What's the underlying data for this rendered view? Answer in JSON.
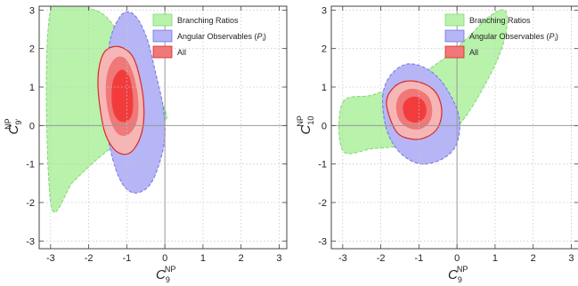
{
  "colors": {
    "branching": "#b9f2ab",
    "branching_edge": "#7fd872",
    "angular": "#b6b5f5",
    "angular_edge": "#7474e6",
    "all_outer": "#f7b6b6",
    "all_mid": "#f07878",
    "all_inner": "#f23c3c",
    "all_edge": "#d62a2a",
    "grid": "#c8c8c8",
    "axis_zero": "#999999"
  },
  "chart_data": [
    {
      "type": "contour",
      "xlabel_main": "C",
      "xlabel_sup": "NP",
      "xlabel_sub": "9",
      "ylabel_main": "C",
      "ylabel_sup": "NP",
      "ylabel_sub": "9'",
      "xlim": [
        -3.3,
        3.2
      ],
      "ylim": [
        -3.2,
        3.1
      ],
      "xticks": [
        -3,
        -2,
        -1,
        0,
        1,
        2,
        3
      ],
      "yticks": [
        -3,
        -2,
        -1,
        0,
        1,
        2,
        3
      ],
      "grid": true,
      "legend_position": "top-right",
      "legend": [
        {
          "label": "Branching Ratios",
          "color_key": "branching"
        },
        {
          "label": "Angular Observables (",
          "label_italic": "P",
          "label_sub": "i",
          "label_end": ")",
          "color_key": "angular"
        },
        {
          "label": "All",
          "color_key": "all_mid"
        }
      ],
      "regions": [
        {
          "name": "Branching Ratios",
          "color_key": "branching",
          "edge_key": "branching_edge",
          "dashed": true,
          "points": [
            [
              -3.0,
              3.0
            ],
            [
              -1.85,
              3.0
            ],
            [
              -1.3,
              2.55
            ],
            [
              -1.0,
              2.05
            ],
            [
              -0.55,
              1.45
            ],
            [
              -0.05,
              0.55
            ],
            [
              0.0,
              0.1
            ],
            [
              -0.6,
              -0.05
            ],
            [
              -1.15,
              -0.4
            ],
            [
              -1.75,
              -0.85
            ],
            [
              -2.4,
              -1.45
            ],
            [
              -3.0,
              -2.0
            ]
          ]
        },
        {
          "name": "Angular Observables",
          "color_key": "angular",
          "edge_key": "angular_edge",
          "dashed": true,
          "points": [
            [
              -1.5,
              1.0
            ],
            [
              -1.45,
              2.15
            ],
            [
              -1.2,
              2.8
            ],
            [
              -0.95,
              2.95
            ],
            [
              -0.7,
              2.75
            ],
            [
              -0.45,
              2.2
            ],
            [
              -0.25,
              1.4
            ],
            [
              -0.05,
              0.5
            ],
            [
              0.0,
              -0.3
            ],
            [
              -0.15,
              -1.0
            ],
            [
              -0.4,
              -1.55
            ],
            [
              -0.75,
              -1.75
            ],
            [
              -1.05,
              -1.6
            ],
            [
              -1.3,
              -1.1
            ],
            [
              -1.5,
              -0.2
            ]
          ]
        },
        {
          "name": "All 3 sigma",
          "color_key": "all_outer",
          "edge_key": "all_edge",
          "dashed": false,
          "points": [
            [
              -1.75,
              0.9
            ],
            [
              -1.72,
              1.55
            ],
            [
              -1.55,
              1.95
            ],
            [
              -1.2,
              2.05
            ],
            [
              -0.85,
              1.8
            ],
            [
              -0.65,
              1.2
            ],
            [
              -0.55,
              0.45
            ],
            [
              -0.6,
              -0.15
            ],
            [
              -0.8,
              -0.6
            ],
            [
              -1.05,
              -0.75
            ],
            [
              -1.35,
              -0.6
            ],
            [
              -1.6,
              -0.1
            ]
          ]
        },
        {
          "name": "All 2 sigma",
          "color_key": "all_mid",
          "edge_key": null,
          "dashed": false,
          "points": [
            [
              -1.55,
              0.85
            ],
            [
              -1.5,
              1.4
            ],
            [
              -1.3,
              1.75
            ],
            [
              -1.05,
              1.75
            ],
            [
              -0.85,
              1.4
            ],
            [
              -0.72,
              0.85
            ],
            [
              -0.7,
              0.3
            ],
            [
              -0.8,
              -0.05
            ],
            [
              -1.0,
              -0.25
            ],
            [
              -1.25,
              -0.2
            ],
            [
              -1.45,
              0.2
            ]
          ]
        },
        {
          "name": "All 1 sigma",
          "color_key": "all_inner",
          "edge_key": null,
          "dashed": false,
          "points": [
            [
              -1.4,
              0.75
            ],
            [
              -1.35,
              1.2
            ],
            [
              -1.15,
              1.45
            ],
            [
              -0.95,
              1.3
            ],
            [
              -0.85,
              0.85
            ],
            [
              -0.85,
              0.35
            ],
            [
              -0.98,
              0.12
            ],
            [
              -1.2,
              0.12
            ],
            [
              -1.35,
              0.35
            ]
          ]
        }
      ]
    },
    {
      "type": "contour",
      "xlabel_main": "C",
      "xlabel_sup": "NP",
      "xlabel_sub": "9",
      "ylabel_main": "C",
      "ylabel_sup": "NP",
      "ylabel_sub": "10",
      "xlim": [
        -3.3,
        3.2
      ],
      "ylim": [
        -3.2,
        3.1
      ],
      "xticks": [
        -3,
        -2,
        -1,
        0,
        1,
        2,
        3
      ],
      "yticks": [
        -3,
        -2,
        -1,
        0,
        1,
        2,
        3
      ],
      "grid": true,
      "legend_position": "top-right",
      "legend": [
        {
          "label": "Branching Ratios",
          "color_key": "branching"
        },
        {
          "label": "Angular Observables (",
          "label_italic": "P",
          "label_sub": "i",
          "label_end": ")",
          "color_key": "angular"
        },
        {
          "label": "All",
          "color_key": "all_mid"
        }
      ],
      "regions": [
        {
          "name": "Branching Ratios",
          "color_key": "branching",
          "edge_key": "branching_edge",
          "dashed": true,
          "points": [
            [
              -3.0,
              0.6
            ],
            [
              -2.2,
              0.8
            ],
            [
              -1.2,
              1.2
            ],
            [
              -0.4,
              1.7
            ],
            [
              0.3,
              2.3
            ],
            [
              0.8,
              2.8
            ],
            [
              1.25,
              3.0
            ],
            [
              1.3,
              2.5
            ],
            [
              1.1,
              1.8
            ],
            [
              0.7,
              1.0
            ],
            [
              0.2,
              0.2
            ],
            [
              -0.3,
              -0.3
            ],
            [
              -1.2,
              -0.5
            ],
            [
              -2.2,
              -0.6
            ],
            [
              -3.0,
              -0.65
            ]
          ]
        },
        {
          "name": "Angular Observables",
          "color_key": "angular",
          "edge_key": "angular_edge",
          "dashed": true,
          "points": [
            [
              -1.95,
              0.75
            ],
            [
              -1.75,
              1.3
            ],
            [
              -1.3,
              1.6
            ],
            [
              -0.75,
              1.45
            ],
            [
              -0.3,
              1.0
            ],
            [
              0.05,
              0.25
            ],
            [
              0.0,
              -0.45
            ],
            [
              -0.35,
              -0.85
            ],
            [
              -0.95,
              -1.0
            ],
            [
              -1.5,
              -0.7
            ],
            [
              -1.85,
              -0.1
            ]
          ]
        },
        {
          "name": "All 3 sigma",
          "color_key": "all_outer",
          "edge_key": "all_edge",
          "dashed": false,
          "points": [
            [
              -1.85,
              0.55
            ],
            [
              -1.7,
              0.95
            ],
            [
              -1.35,
              1.15
            ],
            [
              -0.9,
              1.1
            ],
            [
              -0.55,
              0.85
            ],
            [
              -0.4,
              0.4
            ],
            [
              -0.5,
              -0.05
            ],
            [
              -0.8,
              -0.3
            ],
            [
              -1.2,
              -0.35
            ],
            [
              -1.6,
              -0.15
            ]
          ]
        },
        {
          "name": "All 2 sigma",
          "color_key": "all_mid",
          "edge_key": null,
          "dashed": false,
          "points": [
            [
              -1.6,
              0.5
            ],
            [
              -1.5,
              0.8
            ],
            [
              -1.25,
              0.95
            ],
            [
              -0.95,
              0.9
            ],
            [
              -0.72,
              0.7
            ],
            [
              -0.65,
              0.35
            ],
            [
              -0.75,
              0.05
            ],
            [
              -1.0,
              -0.1
            ],
            [
              -1.3,
              -0.05
            ],
            [
              -1.52,
              0.15
            ]
          ]
        },
        {
          "name": "All 1 sigma",
          "color_key": "all_inner",
          "edge_key": null,
          "dashed": false,
          "points": [
            [
              -1.42,
              0.45
            ],
            [
              -1.35,
              0.65
            ],
            [
              -1.15,
              0.75
            ],
            [
              -0.95,
              0.7
            ],
            [
              -0.82,
              0.52
            ],
            [
              -0.82,
              0.28
            ],
            [
              -0.95,
              0.12
            ],
            [
              -1.15,
              0.08
            ],
            [
              -1.35,
              0.2
            ]
          ]
        }
      ]
    }
  ]
}
